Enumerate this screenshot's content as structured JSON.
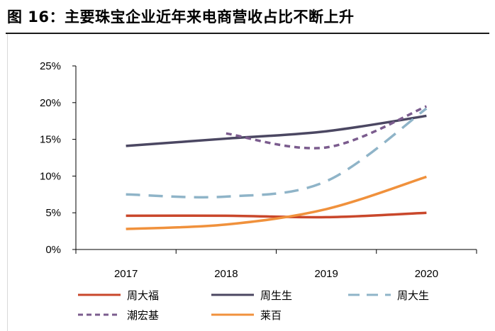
{
  "title": "图 16：主要珠宝企业近年来电商营收占比不断上升",
  "chart_data": {
    "type": "line",
    "title": "图 16：主要珠宝企业近年来电商营收占比不断上升",
    "xlabel": "",
    "ylabel": "",
    "categories": [
      "2017",
      "2018",
      "2019",
      "2020"
    ],
    "y_ticks": [
      "0%",
      "5%",
      "10%",
      "15%",
      "20%",
      "25%"
    ],
    "ylim": [
      0,
      25
    ],
    "grid": false,
    "legend_position": "bottom",
    "series": [
      {
        "name": "周大福",
        "color": "#c9472b",
        "dash": "solid",
        "values": [
          4.6,
          4.6,
          4.4,
          5.0
        ]
      },
      {
        "name": "周生生",
        "color": "#4b4762",
        "dash": "solid",
        "values": [
          14.1,
          15.1,
          16.1,
          18.2
        ]
      },
      {
        "name": "周大生",
        "color": "#8fb4c8",
        "dash": "longdash",
        "values": [
          7.5,
          7.2,
          9.3,
          19.2
        ]
      },
      {
        "name": "潮宏基",
        "color": "#7b5c8e",
        "dash": "shortdash",
        "values": [
          null,
          15.8,
          13.9,
          19.5
        ]
      },
      {
        "name": "莱百",
        "color": "#f0913c",
        "dash": "solid",
        "values": [
          2.8,
          3.4,
          5.5,
          9.9
        ]
      }
    ]
  }
}
